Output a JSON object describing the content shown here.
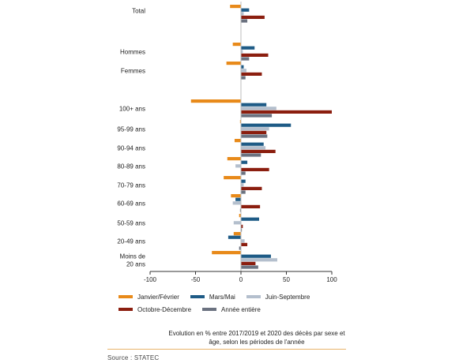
{
  "chart_data": {
    "type": "bar",
    "orientation": "horizontal",
    "categories": [
      [
        "Total"
      ],
      [
        "Hommes"
      ],
      [
        "Femmes"
      ],
      [
        "100+ ans"
      ],
      [
        "95-99 ans"
      ],
      [
        "90-94 ans"
      ],
      [
        "80-89 ans"
      ],
      [
        "70-79 ans"
      ],
      [
        "60-69 ans"
      ],
      [
        "50-59 ans"
      ],
      [
        "20-49 ans"
      ],
      [
        "Moins de",
        "20 ans"
      ]
    ],
    "series": [
      {
        "name": "Janvier/Février",
        "color": "#e88a1a",
        "values": [
          -12,
          -9,
          -16,
          -55,
          -1,
          -7,
          -15,
          -19,
          -11,
          -2,
          -8,
          -32
        ]
      },
      {
        "name": "Mars/Mai",
        "color": "#1e5b86",
        "values": [
          9,
          15,
          3,
          28,
          55,
          25,
          7,
          5,
          -6,
          20,
          -14,
          33
        ]
      },
      {
        "name": "Juin-Septembre",
        "color": "#b4bfcd",
        "values": [
          3,
          2,
          6,
          39,
          31,
          27,
          -6,
          3,
          -9,
          -8,
          4,
          40
        ]
      },
      {
        "name": "Octobre-Décembre",
        "color": "#8b1e0f",
        "values": [
          26,
          30,
          23,
          100,
          28,
          38,
          31,
          23,
          21,
          2,
          7,
          16
        ]
      },
      {
        "name": "Année entière",
        "color": "#6b7280",
        "values": [
          7,
          9,
          5,
          34,
          29,
          22,
          5,
          5,
          -1,
          1,
          -2,
          19
        ]
      }
    ],
    "xlim": [
      -100,
      100
    ],
    "xticks": [
      -100,
      -50,
      0,
      50,
      100
    ],
    "grid": false,
    "legend_position": "bottom"
  },
  "caption": {
    "line1": "Evolution en % entre 2017/2019 et 2020 des décès par sexe et",
    "line2": "âge, selon les périodes de l'année"
  },
  "source": "Source : STATEC"
}
